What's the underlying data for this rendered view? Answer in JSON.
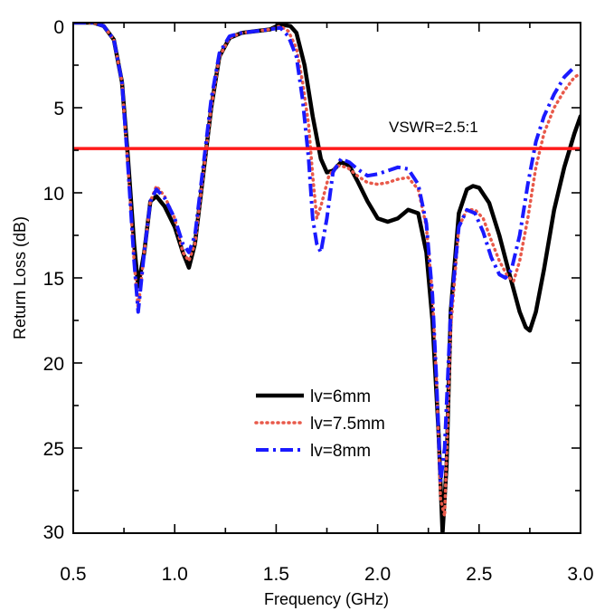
{
  "chart_data": {
    "type": "line",
    "title": "",
    "xlabel": "Frequency (GHz)",
    "ylabel": "Return Loss (dB)",
    "xlim": [
      0.5,
      3.0
    ],
    "ylim": [
      0,
      30
    ],
    "y_inverted": true,
    "xticks": [
      "0.5",
      "1.0",
      "1.5",
      "2.0",
      "2.5",
      "3.0"
    ],
    "yticks": [
      "0",
      "5",
      "10",
      "15",
      "20",
      "25",
      "30"
    ],
    "grid": false,
    "legend_position": "center",
    "reference_line": {
      "y": 7.4,
      "label": "VSWR=2.5:1",
      "color": "#ff1a1a"
    },
    "series": [
      {
        "name": "lv=6mm",
        "color": "#000000",
        "style": "solid",
        "x": [
          0.5,
          0.6,
          0.65,
          0.7,
          0.74,
          0.77,
          0.8,
          0.82,
          0.85,
          0.88,
          0.91,
          0.95,
          1.0,
          1.04,
          1.07,
          1.1,
          1.14,
          1.18,
          1.22,
          1.27,
          1.33,
          1.4,
          1.47,
          1.52,
          1.57,
          1.6,
          1.64,
          1.68,
          1.72,
          1.75,
          1.78,
          1.82,
          1.86,
          1.9,
          1.95,
          2.0,
          2.05,
          2.1,
          2.15,
          2.2,
          2.24,
          2.27,
          2.3,
          2.32,
          2.34,
          2.36,
          2.4,
          2.44,
          2.47,
          2.5,
          2.55,
          2.6,
          2.65,
          2.7,
          2.73,
          2.75,
          2.78,
          2.82,
          2.87,
          2.92,
          2.97,
          3.0
        ],
        "y": [
          0.0,
          0.0,
          0.2,
          1.0,
          3.5,
          8.0,
          13.0,
          15.5,
          13.5,
          10.5,
          10.2,
          10.8,
          12.0,
          13.5,
          14.4,
          13.0,
          9.0,
          5.0,
          2.0,
          0.9,
          0.6,
          0.5,
          0.4,
          0.1,
          0.2,
          0.6,
          2.5,
          5.5,
          8.0,
          8.8,
          8.7,
          8.2,
          8.4,
          9.3,
          10.5,
          11.5,
          11.7,
          11.5,
          11.0,
          11.2,
          13.5,
          17.5,
          24.0,
          30.0,
          26.0,
          17.0,
          11.2,
          9.8,
          9.6,
          9.7,
          10.6,
          12.5,
          14.8,
          17.0,
          17.9,
          18.1,
          17.0,
          14.5,
          11.0,
          8.5,
          6.5,
          5.5
        ]
      },
      {
        "name": "lv=7.5mm",
        "color": "#e8594a",
        "style": "dotted",
        "x": [
          0.5,
          0.6,
          0.65,
          0.7,
          0.74,
          0.77,
          0.8,
          0.82,
          0.85,
          0.88,
          0.91,
          0.95,
          1.0,
          1.04,
          1.07,
          1.1,
          1.14,
          1.18,
          1.22,
          1.27,
          1.33,
          1.4,
          1.47,
          1.52,
          1.56,
          1.6,
          1.63,
          1.66,
          1.68,
          1.7,
          1.72,
          1.76,
          1.8,
          1.85,
          1.9,
          1.95,
          2.0,
          2.05,
          2.1,
          2.15,
          2.2,
          2.24,
          2.27,
          2.29,
          2.31,
          2.33,
          2.36,
          2.4,
          2.44,
          2.48,
          2.52,
          2.56,
          2.6,
          2.64,
          2.67,
          2.7,
          2.74,
          2.78,
          2.82,
          2.87,
          2.92,
          2.97,
          3.0
        ],
        "y": [
          0.0,
          0.0,
          0.2,
          1.0,
          3.5,
          8.5,
          14.0,
          16.8,
          13.5,
          10.5,
          9.6,
          10.2,
          11.5,
          13.5,
          14.0,
          13.0,
          9.0,
          5.0,
          2.0,
          0.9,
          0.6,
          0.5,
          0.4,
          0.2,
          0.5,
          1.5,
          3.5,
          6.0,
          9.0,
          11.5,
          10.8,
          9.0,
          8.4,
          8.5,
          9.0,
          9.4,
          9.5,
          9.4,
          9.2,
          9.1,
          9.8,
          12.0,
          16.0,
          21.0,
          28.0,
          29.0,
          18.0,
          12.0,
          11.0,
          11.0,
          11.5,
          12.8,
          14.0,
          14.9,
          15.2,
          14.0,
          11.5,
          8.5,
          6.5,
          5.0,
          4.0,
          3.2,
          3.0
        ]
      },
      {
        "name": "lv=8mm",
        "color": "#1a1aff",
        "style": "dashdot",
        "x": [
          0.5,
          0.6,
          0.65,
          0.7,
          0.74,
          0.77,
          0.8,
          0.82,
          0.85,
          0.88,
          0.91,
          0.95,
          1.0,
          1.04,
          1.07,
          1.1,
          1.14,
          1.18,
          1.22,
          1.27,
          1.33,
          1.4,
          1.47,
          1.52,
          1.56,
          1.6,
          1.63,
          1.66,
          1.68,
          1.7,
          1.72,
          1.75,
          1.78,
          1.82,
          1.86,
          1.9,
          1.95,
          2.0,
          2.05,
          2.1,
          2.15,
          2.2,
          2.24,
          2.27,
          2.29,
          2.3,
          2.31,
          2.33,
          2.36,
          2.4,
          2.44,
          2.48,
          2.52,
          2.56,
          2.6,
          2.63,
          2.66,
          2.7,
          2.74,
          2.78,
          2.82,
          2.87,
          2.92,
          2.97
        ],
        "y": [
          0.0,
          0.0,
          0.2,
          1.0,
          3.5,
          8.5,
          14.0,
          17.0,
          13.5,
          10.5,
          9.8,
          10.3,
          11.5,
          13.0,
          13.5,
          12.5,
          8.5,
          4.5,
          1.8,
          0.8,
          0.6,
          0.5,
          0.4,
          0.3,
          0.8,
          2.0,
          4.5,
          8.0,
          11.5,
          13.0,
          13.5,
          11.5,
          8.8,
          8.0,
          8.2,
          8.6,
          9.0,
          8.9,
          8.7,
          8.5,
          8.6,
          9.5,
          11.8,
          16.0,
          21.0,
          24.0,
          27.0,
          25.0,
          17.0,
          12.0,
          11.0,
          11.2,
          12.3,
          13.8,
          14.8,
          15.0,
          14.5,
          12.5,
          9.5,
          7.0,
          5.5,
          4.2,
          3.2,
          2.6
        ]
      }
    ]
  }
}
